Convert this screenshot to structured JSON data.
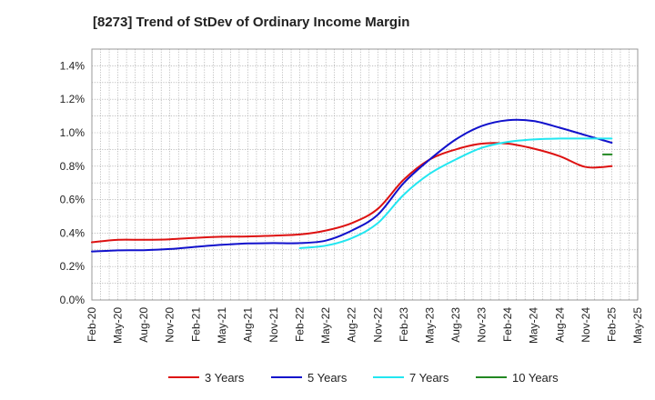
{
  "chart_data": {
    "type": "line",
    "title": "[8273]  Trend of StDev of Ordinary Income Margin",
    "xlabel": "",
    "ylabel": "",
    "x_ticks": [
      "Feb-20",
      "May-20",
      "Aug-20",
      "Nov-20",
      "Feb-21",
      "May-21",
      "Aug-21",
      "Nov-21",
      "Feb-22",
      "May-22",
      "Aug-22",
      "Nov-22",
      "Feb-23",
      "May-23",
      "Aug-23",
      "Nov-23",
      "Feb-24",
      "May-24",
      "Aug-24",
      "Nov-24",
      "Feb-25",
      "May-25"
    ],
    "y_ticks": [
      "0.0%",
      "0.2%",
      "0.4%",
      "0.6%",
      "0.8%",
      "1.0%",
      "1.2%",
      "1.4%"
    ],
    "ylim": [
      0,
      1.5
    ],
    "y_unit": "%",
    "grid": true,
    "legend_position": "bottom",
    "series": [
      {
        "name": "3 Years",
        "color": "#dd1111",
        "points": [
          [
            "Feb-20",
            0.345
          ],
          [
            "May-20",
            0.36
          ],
          [
            "Aug-20",
            0.36
          ],
          [
            "Nov-20",
            0.363
          ],
          [
            "Feb-21",
            0.372
          ],
          [
            "May-21",
            0.378
          ],
          [
            "Aug-21",
            0.38
          ],
          [
            "Nov-21",
            0.385
          ],
          [
            "Feb-22",
            0.392
          ],
          [
            "May-22",
            0.415
          ],
          [
            "Aug-22",
            0.46
          ],
          [
            "Nov-22",
            0.545
          ],
          [
            "Feb-23",
            0.72
          ],
          [
            "May-23",
            0.84
          ],
          [
            "Aug-23",
            0.9
          ],
          [
            "Nov-23",
            0.935
          ],
          [
            "Feb-24",
            0.935
          ],
          [
            "May-24",
            0.905
          ],
          [
            "Aug-24",
            0.86
          ],
          [
            "Nov-24",
            0.795
          ],
          [
            "Feb-25",
            0.8
          ]
        ]
      },
      {
        "name": "5 Years",
        "color": "#1111cc",
        "points": [
          [
            "Feb-20",
            0.29
          ],
          [
            "May-20",
            0.297
          ],
          [
            "Aug-20",
            0.298
          ],
          [
            "Nov-20",
            0.305
          ],
          [
            "Feb-21",
            0.318
          ],
          [
            "May-21",
            0.33
          ],
          [
            "Aug-21",
            0.338
          ],
          [
            "Nov-21",
            0.34
          ],
          [
            "Feb-22",
            0.34
          ],
          [
            "May-22",
            0.355
          ],
          [
            "Aug-22",
            0.415
          ],
          [
            "Nov-22",
            0.51
          ],
          [
            "Feb-23",
            0.7
          ],
          [
            "May-23",
            0.84
          ],
          [
            "Aug-23",
            0.96
          ],
          [
            "Nov-23",
            1.04
          ],
          [
            "Feb-24",
            1.075
          ],
          [
            "May-24",
            1.07
          ],
          [
            "Aug-24",
            1.03
          ],
          [
            "Nov-24",
            0.985
          ],
          [
            "Feb-25",
            0.94
          ]
        ]
      },
      {
        "name": "7 Years",
        "color": "#22e6f0",
        "points": [
          [
            "Feb-22",
            0.31
          ],
          [
            "May-22",
            0.325
          ],
          [
            "Aug-22",
            0.37
          ],
          [
            "Nov-22",
            0.46
          ],
          [
            "Feb-23",
            0.63
          ],
          [
            "May-23",
            0.755
          ],
          [
            "Aug-23",
            0.84
          ],
          [
            "Nov-23",
            0.91
          ],
          [
            "Feb-24",
            0.945
          ],
          [
            "May-24",
            0.96
          ],
          [
            "Aug-24",
            0.965
          ],
          [
            "Nov-24",
            0.965
          ],
          [
            "Feb-25",
            0.965
          ]
        ]
      },
      {
        "name": "10 Years",
        "color": "#228822",
        "points": [
          [
            "Jan-25",
            0.87
          ],
          [
            "Feb-25",
            0.87
          ]
        ]
      }
    ]
  }
}
